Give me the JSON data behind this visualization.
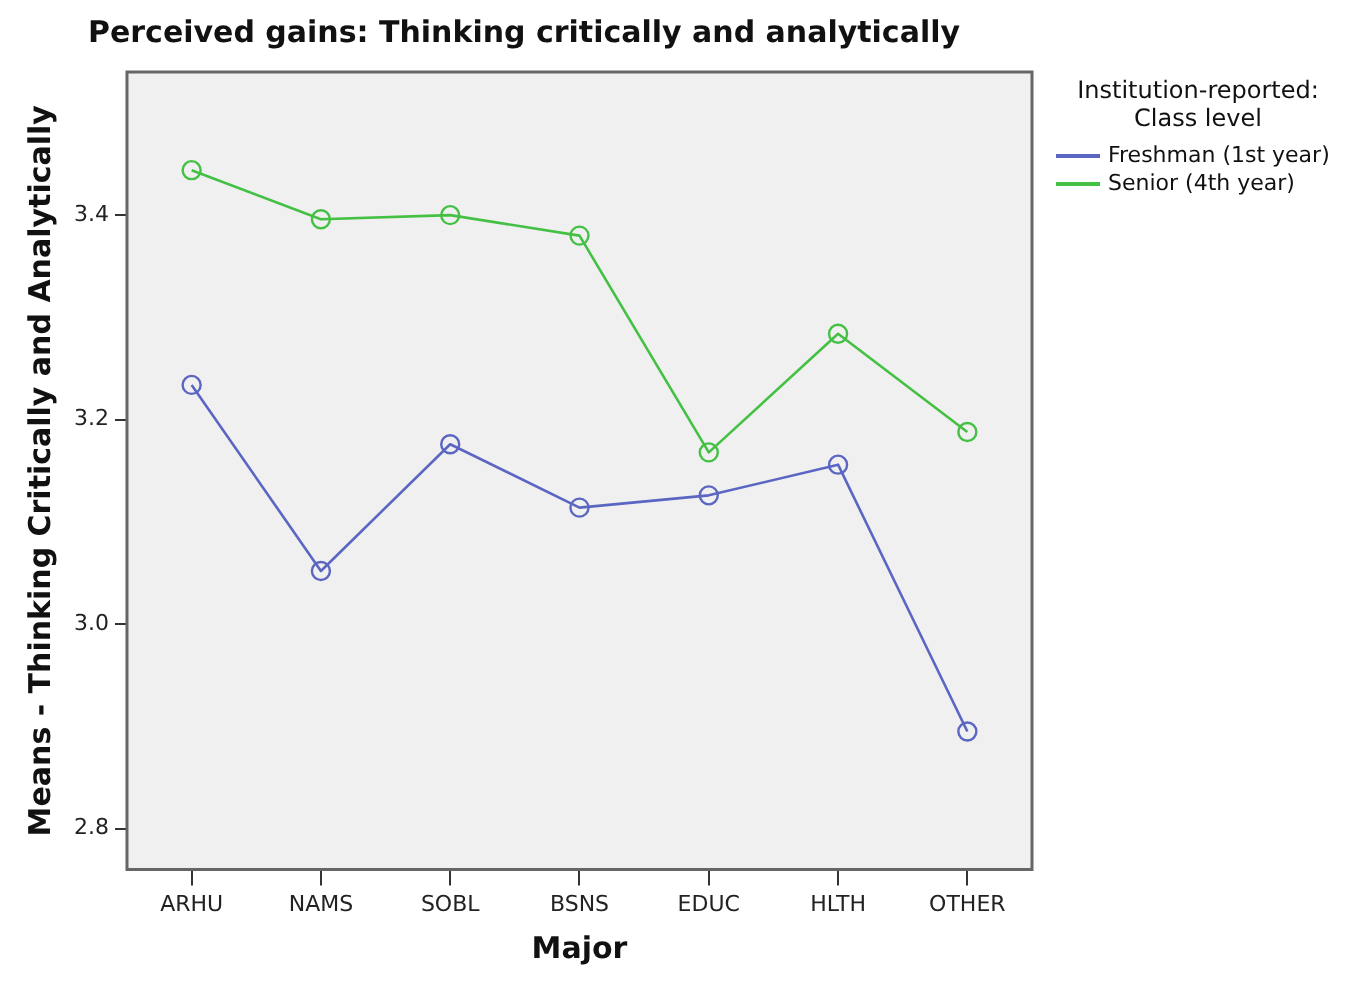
{
  "chart_data": {
    "type": "line",
    "title": "Perceived gains: Thinking critically and analytically",
    "xlabel": "Major",
    "ylabel": "Means - Thinking Critically and Analytically",
    "legend_title": "Institution-reported: Class level",
    "categories": [
      "ARHU",
      "NAMS",
      "SOBL",
      "BSNS",
      "EDUC",
      "HLTH",
      "OTHER"
    ],
    "series": [
      {
        "name": "Freshman (1st year)",
        "color": "#5b66c2",
        "values": [
          3.234,
          3.052,
          3.176,
          3.114,
          3.126,
          3.156,
          2.895
        ]
      },
      {
        "name": "Senior (4th year)",
        "color": "#44c044",
        "values": [
          3.444,
          3.396,
          3.4,
          3.38,
          3.168,
          3.284,
          3.188
        ]
      }
    ],
    "ylim": [
      2.76,
      3.54
    ],
    "yticks": [
      {
        "value": 2.8,
        "label": "2.8"
      },
      {
        "value": 3,
        "label": "3.0"
      },
      {
        "value": 3.2,
        "label": "3.2"
      },
      {
        "value": 3.4,
        "label": "3.4"
      }
    ],
    "grid": false,
    "legend": "top right",
    "marker": "circle",
    "line_style": "solid"
  }
}
